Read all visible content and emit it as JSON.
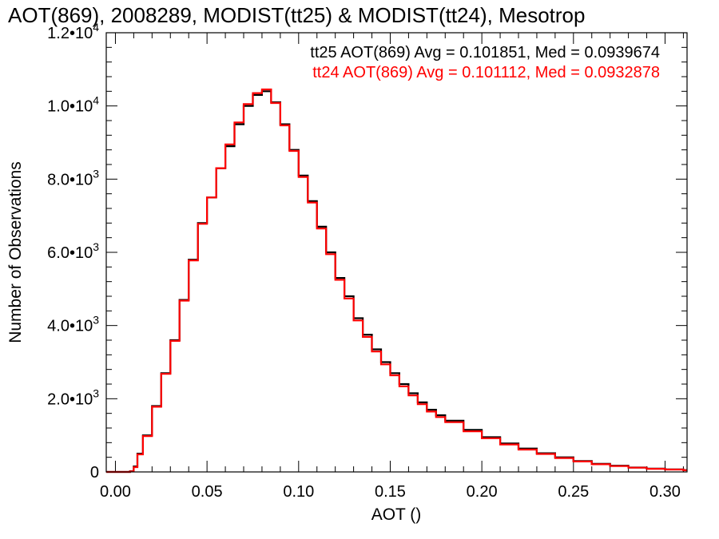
{
  "chart_data": {
    "type": "line",
    "step": true,
    "title": "AOT(869), 2008289, MODIST(tt25) & MODIST(tt24), Mesotrop",
    "xlabel": "AOT ()",
    "ylabel": "Number of Observations",
    "xlim": [
      -0.005,
      0.312
    ],
    "ylim": [
      0,
      12000
    ],
    "x_ticks": [
      {
        "value": 0.0,
        "label": "0.00"
      },
      {
        "value": 0.05,
        "label": "0.05"
      },
      {
        "value": 0.1,
        "label": "0.10"
      },
      {
        "value": 0.15,
        "label": "0.15"
      },
      {
        "value": 0.2,
        "label": "0.20"
      },
      {
        "value": 0.25,
        "label": "0.25"
      },
      {
        "value": 0.3,
        "label": "0.30"
      }
    ],
    "y_ticks": [
      {
        "value": 0,
        "mant": "0",
        "exp": ""
      },
      {
        "value": 2000,
        "mant": "2.0•10",
        "exp": "3"
      },
      {
        "value": 4000,
        "mant": "4.0•10",
        "exp": "3"
      },
      {
        "value": 6000,
        "mant": "6.0•10",
        "exp": "3"
      },
      {
        "value": 8000,
        "mant": "8.0•10",
        "exp": "3"
      },
      {
        "value": 10000,
        "mant": "1.0•10",
        "exp": "4"
      },
      {
        "value": 12000,
        "mant": "1.2•10",
        "exp": "4"
      }
    ],
    "x": [
      -0.005,
      0.0,
      0.005,
      0.008,
      0.01,
      0.012,
      0.015,
      0.02,
      0.025,
      0.03,
      0.035,
      0.04,
      0.045,
      0.05,
      0.055,
      0.06,
      0.065,
      0.07,
      0.075,
      0.08,
      0.085,
      0.09,
      0.095,
      0.1,
      0.105,
      0.11,
      0.115,
      0.12,
      0.125,
      0.13,
      0.135,
      0.14,
      0.145,
      0.15,
      0.155,
      0.16,
      0.165,
      0.17,
      0.175,
      0.18,
      0.19,
      0.2,
      0.21,
      0.22,
      0.23,
      0.24,
      0.25,
      0.26,
      0.27,
      0.28,
      0.29,
      0.3,
      0.31
    ],
    "series": [
      {
        "name": "tt25",
        "color": "#000000",
        "values": [
          0,
          0,
          0,
          20,
          150,
          500,
          1000,
          1800,
          2700,
          3600,
          4700,
          5800,
          6800,
          7500,
          8300,
          8900,
          9500,
          10000,
          10300,
          10400,
          10100,
          9500,
          8800,
          8100,
          7400,
          6700,
          6000,
          5300,
          4800,
          4200,
          3750,
          3350,
          3000,
          2700,
          2400,
          2150,
          1900,
          1700,
          1550,
          1400,
          1150,
          950,
          780,
          640,
          510,
          400,
          300,
          220,
          170,
          120,
          90,
          70,
          50
        ]
      },
      {
        "name": "tt24",
        "color": "#ff0000",
        "values": [
          0,
          0,
          0,
          15,
          130,
          480,
          980,
          1780,
          2680,
          3580,
          4680,
          5780,
          6780,
          7500,
          8300,
          8950,
          9550,
          10050,
          10350,
          10450,
          10080,
          9470,
          8770,
          8060,
          7360,
          6650,
          5950,
          5250,
          4740,
          4140,
          3690,
          3290,
          2940,
          2640,
          2340,
          2090,
          1850,
          1650,
          1500,
          1360,
          1110,
          920,
          750,
          610,
          490,
          380,
          285,
          210,
          160,
          115,
          85,
          65,
          45
        ]
      }
    ]
  },
  "stats": [
    {
      "text": "tt25 AOT(869) Avg = 0.101851, Med = 0.0939674",
      "color": "#000000"
    },
    {
      "text": "tt24 AOT(869) Avg = 0.101112, Med = 0.0932878",
      "color": "#ff0000"
    }
  ]
}
